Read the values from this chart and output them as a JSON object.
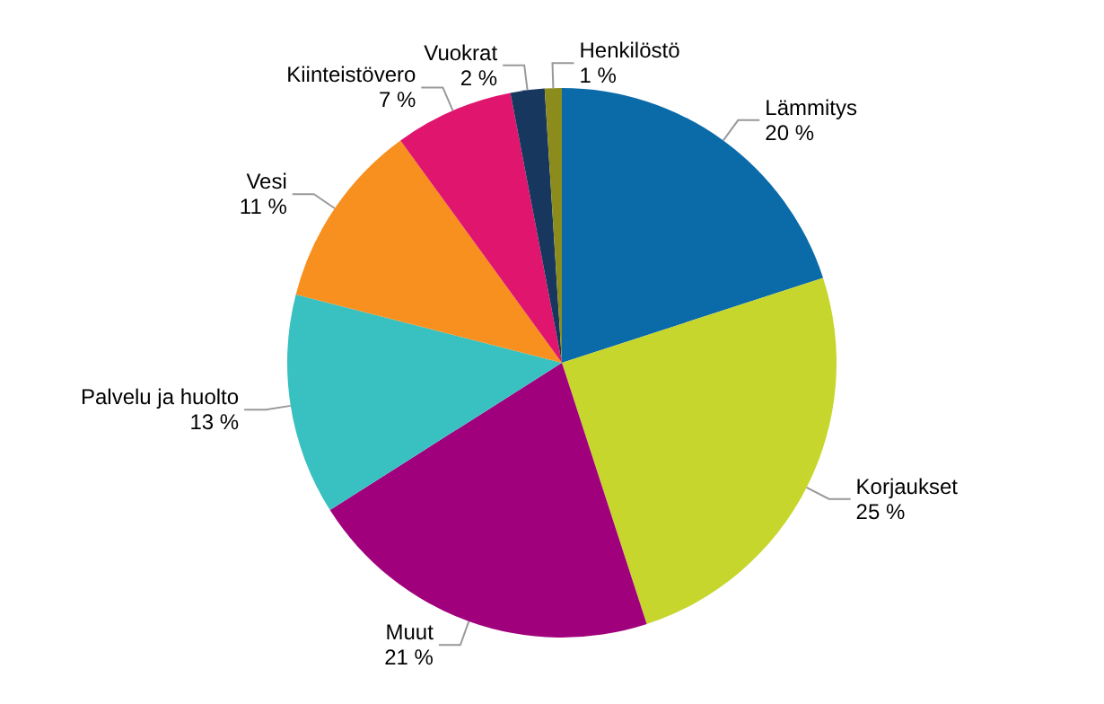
{
  "chart_data": {
    "type": "pie",
    "categories": [
      "Lämmitys",
      "Korjaukset",
      "Muut",
      "Palvelu ja huolto",
      "Vesi",
      "Kiinteistövero",
      "Vuokrat",
      "Henkilöstö"
    ],
    "values": [
      20,
      25,
      21,
      13,
      11,
      7,
      2,
      1
    ],
    "value_labels": [
      "20 %",
      "25 %",
      "21 %",
      "13 %",
      "11 %",
      "7 %",
      "2 %",
      "1 %"
    ],
    "colors": [
      "#0b6aa8",
      "#c6d62c",
      "#a1007d",
      "#39c0c0",
      "#f7901e",
      "#e0156d",
      "#17375e",
      "#8c8c1c"
    ]
  }
}
